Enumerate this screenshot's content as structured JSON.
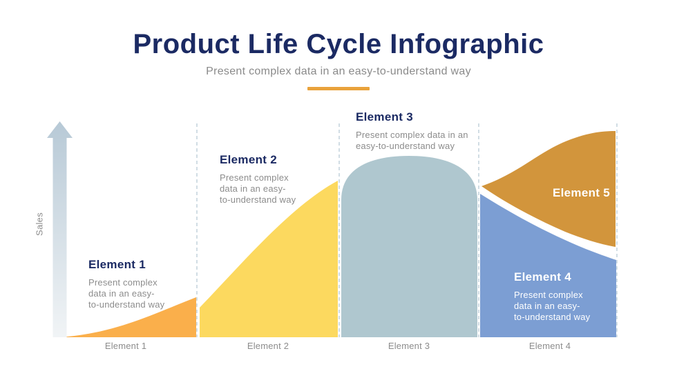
{
  "slide": {
    "title": "Product Life Cycle Infographic",
    "subtitle": "Present complex data in an easy-to-understand way"
  },
  "colors": {
    "title_navy": "#1B2A63",
    "body_gray": "#8C8C8C",
    "accent_bar": "#E9A23B",
    "separator": "#C2D2DC",
    "arrow_top": "#B7C9D6",
    "arrow_bottom": "#F1F4F6"
  },
  "chart": {
    "y_axis_label": "Sales",
    "x_axis_labels": [
      "Element 1",
      "Element 2",
      "Element 3",
      "Element 4"
    ],
    "phases": [
      {
        "label": "Element 1",
        "description_lines": [
          "Present complex",
          "data in an easy-",
          "to-understand way"
        ],
        "color": "#FAAF4B"
      },
      {
        "label": "Element 2",
        "description_lines": [
          "Present complex",
          "data in an easy-",
          "to-understand way"
        ],
        "color": "#FCD95F"
      },
      {
        "label": "Element 3",
        "description_lines": [
          "Present complex data in an",
          "easy-to-understand way"
        ],
        "color": "#AFC7CF"
      },
      {
        "label": "Element 4",
        "description_lines": [
          "Present complex",
          "data in an easy-",
          "to-understand way"
        ],
        "color": "#7C9ED3"
      },
      {
        "label": "Element 5",
        "description_lines": [],
        "color": "#D2953C"
      }
    ]
  }
}
